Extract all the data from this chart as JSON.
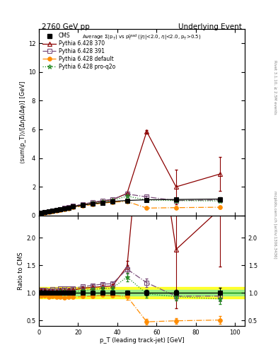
{
  "title_left": "2760 GeV pp",
  "title_right": "Underlying Event",
  "ylabel_main": "⟨sum(p_T)⟩/[ΔηΔ(Δφ)] [GeV]",
  "ylabel_ratio": "Ratio to CMS",
  "xlabel": "p_T (leading track-jet) [GeV]",
  "rivet_text": "Rivet 3.1.10, ≥ 2.5M events",
  "arxiv_text": "mcplots.cern.ch [arXiv:1306.3436]",
  "ylim_main": [
    0,
    13
  ],
  "ylim_ratio": [
    0.4,
    2.4
  ],
  "xlim": [
    0,
    105
  ],
  "cms_x": [
    1.0,
    3.0,
    5.0,
    7.0,
    9.0,
    11.0,
    13.0,
    15.0,
    17.5,
    22.5,
    27.5,
    32.5,
    37.5,
    45.0,
    55.0,
    70.0,
    92.5
  ],
  "cms_y": [
    0.18,
    0.22,
    0.27,
    0.32,
    0.37,
    0.42,
    0.48,
    0.54,
    0.61,
    0.72,
    0.82,
    0.9,
    0.98,
    1.05,
    1.1,
    1.12,
    1.15
  ],
  "cms_ey": [
    0.01,
    0.01,
    0.01,
    0.01,
    0.01,
    0.01,
    0.01,
    0.01,
    0.02,
    0.02,
    0.02,
    0.03,
    0.03,
    0.04,
    0.05,
    0.06,
    0.1
  ],
  "p370_x": [
    1.0,
    3.0,
    5.0,
    7.0,
    9.0,
    11.0,
    13.0,
    15.0,
    17.5,
    22.5,
    27.5,
    32.5,
    37.5,
    45.0,
    55.0,
    70.0,
    92.5
  ],
  "p370_y": [
    0.19,
    0.23,
    0.28,
    0.33,
    0.38,
    0.44,
    0.5,
    0.57,
    0.64,
    0.78,
    0.9,
    1.0,
    1.1,
    1.55,
    5.85,
    2.0,
    2.9
  ],
  "p370_ey": [
    0.005,
    0.005,
    0.005,
    0.005,
    0.005,
    0.005,
    0.005,
    0.005,
    0.01,
    0.01,
    0.02,
    0.02,
    0.03,
    0.1,
    0.12,
    1.2,
    1.2
  ],
  "p391_x": [
    1.0,
    3.0,
    5.0,
    7.0,
    9.0,
    11.0,
    13.0,
    15.0,
    17.5,
    22.5,
    27.5,
    32.5,
    37.5,
    45.0,
    55.0,
    70.0,
    92.5
  ],
  "p391_y": [
    0.19,
    0.23,
    0.28,
    0.34,
    0.39,
    0.45,
    0.52,
    0.58,
    0.66,
    0.8,
    0.93,
    1.04,
    1.14,
    1.5,
    1.3,
    1.05,
    1.08
  ],
  "p391_ey": [
    0.005,
    0.005,
    0.005,
    0.005,
    0.005,
    0.005,
    0.005,
    0.005,
    0.01,
    0.01,
    0.02,
    0.02,
    0.03,
    0.08,
    0.08,
    0.08,
    0.1
  ],
  "pdef_x": [
    1.0,
    3.0,
    5.0,
    7.0,
    9.0,
    11.0,
    13.0,
    15.0,
    17.5,
    22.5,
    27.5,
    32.5,
    37.5,
    45.0,
    55.0,
    70.0,
    92.5
  ],
  "pdef_y": [
    0.17,
    0.21,
    0.25,
    0.3,
    0.34,
    0.39,
    0.44,
    0.5,
    0.56,
    0.67,
    0.77,
    0.86,
    0.93,
    0.98,
    0.52,
    0.55,
    0.58
  ],
  "pdef_ey": [
    0.005,
    0.005,
    0.005,
    0.005,
    0.005,
    0.005,
    0.005,
    0.005,
    0.01,
    0.01,
    0.01,
    0.02,
    0.02,
    0.06,
    0.06,
    0.06,
    0.08
  ],
  "pq2o_x": [
    1.0,
    3.0,
    5.0,
    7.0,
    9.0,
    11.0,
    13.0,
    15.0,
    17.5,
    22.5,
    27.5,
    32.5,
    37.5,
    45.0,
    55.0,
    70.0,
    92.5
  ],
  "pq2o_y": [
    0.18,
    0.22,
    0.27,
    0.32,
    0.37,
    0.43,
    0.49,
    0.55,
    0.62,
    0.75,
    0.87,
    0.97,
    1.06,
    1.35,
    1.08,
    1.04,
    1.02
  ],
  "pq2o_ey": [
    0.005,
    0.005,
    0.005,
    0.005,
    0.005,
    0.005,
    0.005,
    0.005,
    0.01,
    0.01,
    0.02,
    0.02,
    0.03,
    0.08,
    0.08,
    0.08,
    0.1
  ],
  "color_cms": "#000000",
  "color_370": "#8B0000",
  "color_391": "#7B4F7B",
  "color_def": "#FF8C00",
  "color_q2o": "#228B22",
  "band_green": [
    0.95,
    1.05
  ],
  "band_yellow": [
    0.9,
    1.1
  ]
}
